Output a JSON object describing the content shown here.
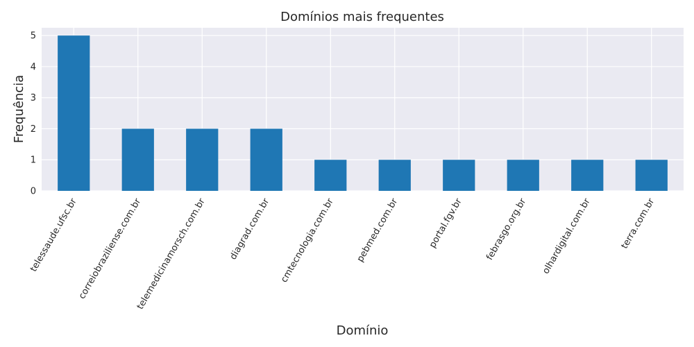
{
  "chart_data": {
    "type": "bar",
    "title": "Domínios mais frequentes",
    "xlabel": "Domínio",
    "ylabel": "Frequência",
    "categories": [
      "telessaude.ufsc.br",
      "correiobraziliense.com.br",
      "telemedicinamorsch.com.br",
      "diagrad.com.br",
      "cmtecnologia.com.br",
      "pebmed.com.br",
      "portal.fgv.br",
      "febrasgo.org.br",
      "olhardigital.com.br",
      "terra.com.br"
    ],
    "values": [
      5,
      2,
      2,
      2,
      1,
      1,
      1,
      1,
      1,
      1
    ],
    "ylim": [
      0,
      5.25
    ],
    "yticks": [
      0,
      1,
      2,
      3,
      4,
      5
    ],
    "grid": true,
    "colors": {
      "bar": "#1f77b4",
      "plot_background": "#eaeaf2",
      "grid": "#ffffff"
    }
  }
}
